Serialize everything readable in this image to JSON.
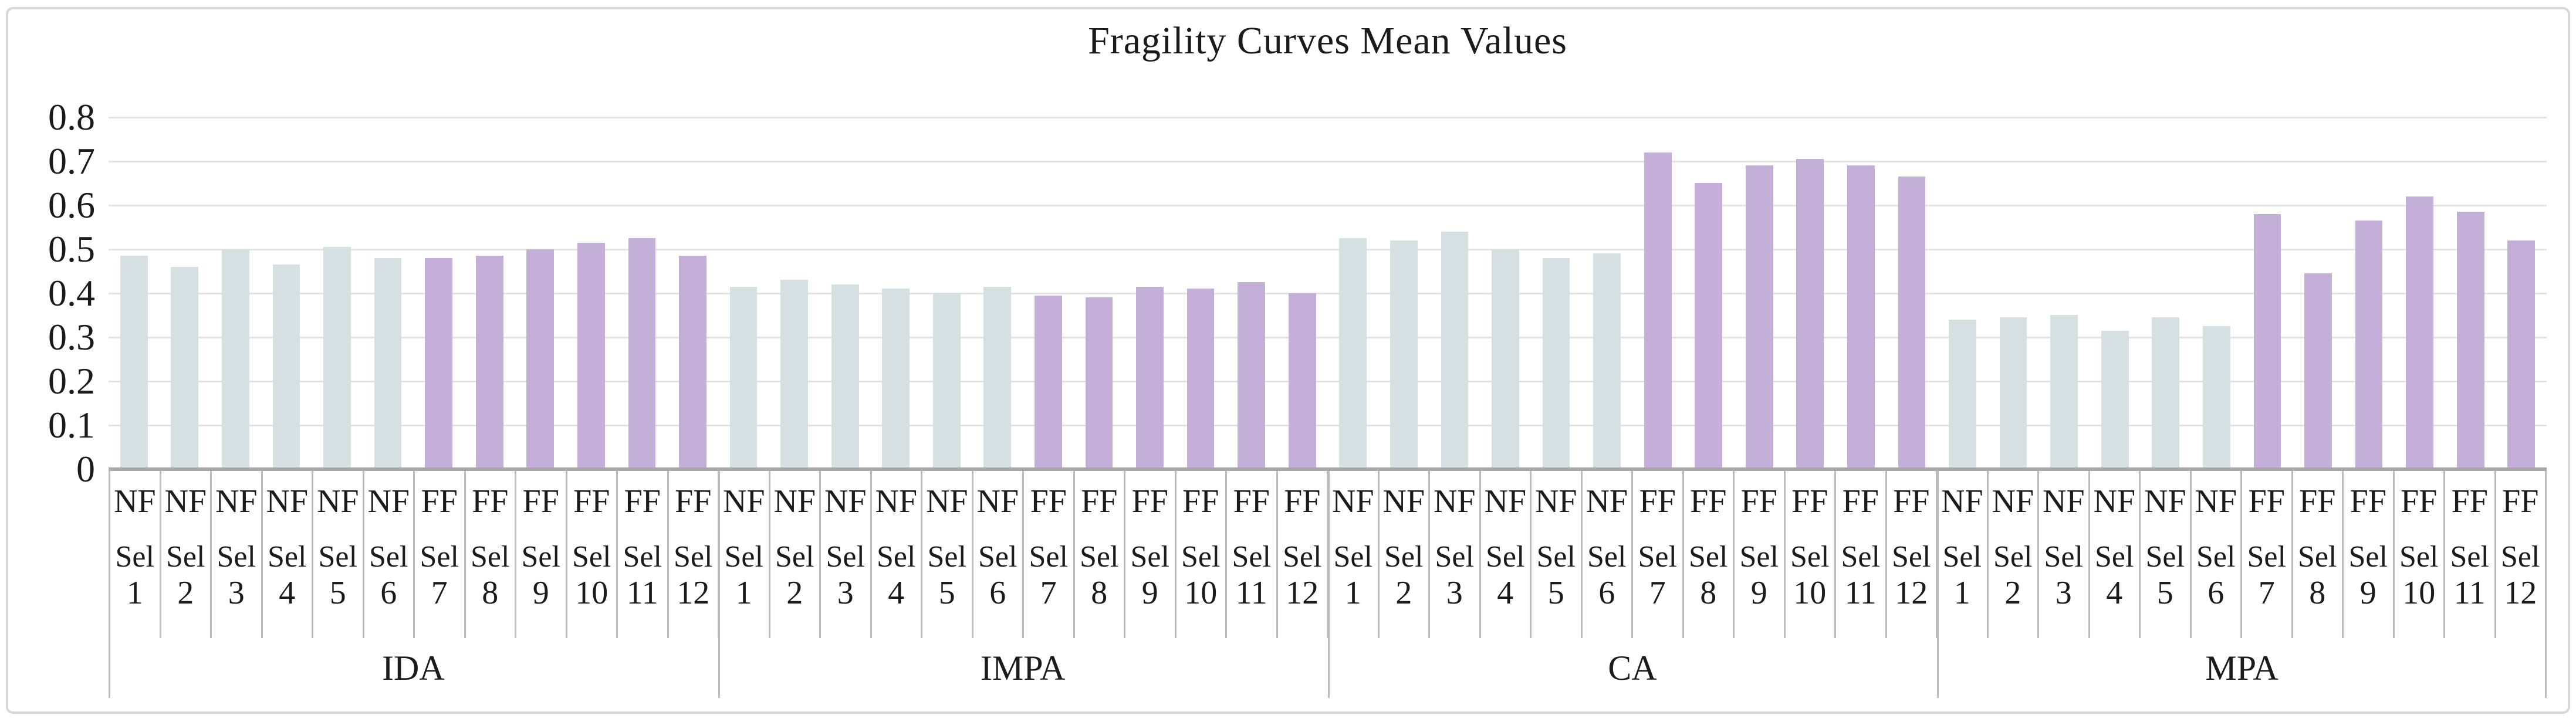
{
  "title": "Fragility Curves Mean Values",
  "chart_data": {
    "type": "bar",
    "title": "Fragility Curves Mean Values",
    "xlabel": "",
    "ylabel": "",
    "ylim": [
      0,
      0.8
    ],
    "ytick_labels": [
      "0.8",
      "0.7",
      "0.6",
      "0.5",
      "0.4",
      "0.3",
      "0.2",
      "0.1",
      "0"
    ],
    "grid": true,
    "legend_position": "none",
    "series_colors": {
      "NF": "#d6e0e2",
      "FF": "#c3afd7"
    },
    "axis_colors": {
      "gridline": "#e4e4e4",
      "axis_line": "#a8a8a8",
      "table_line": "#bcbcbc",
      "figure_border": "#d8d8d8"
    },
    "groups": [
      {
        "name": "IDA",
        "bars": [
          {
            "label1": "NF",
            "label2": "Sel",
            "label3": "1",
            "value": 0.485
          },
          {
            "label1": "NF",
            "label2": "Sel",
            "label3": "2",
            "value": 0.46
          },
          {
            "label1": "NF",
            "label2": "Sel",
            "label3": "3",
            "value": 0.5
          },
          {
            "label1": "NF",
            "label2": "Sel",
            "label3": "4",
            "value": 0.465
          },
          {
            "label1": "NF",
            "label2": "Sel",
            "label3": "5",
            "value": 0.505
          },
          {
            "label1": "NF",
            "label2": "Sel",
            "label3": "6",
            "value": 0.48
          },
          {
            "label1": "FF",
            "label2": "Sel",
            "label3": "7",
            "value": 0.48
          },
          {
            "label1": "FF",
            "label2": "Sel",
            "label3": "8",
            "value": 0.485
          },
          {
            "label1": "FF",
            "label2": "Sel",
            "label3": "9",
            "value": 0.5
          },
          {
            "label1": "FF",
            "label2": "Sel",
            "label3": "10",
            "value": 0.515
          },
          {
            "label1": "FF",
            "label2": "Sel",
            "label3": "11",
            "value": 0.525
          },
          {
            "label1": "FF",
            "label2": "Sel",
            "label3": "12",
            "value": 0.485
          }
        ]
      },
      {
        "name": "IMPA",
        "bars": [
          {
            "label1": "NF",
            "label2": "Sel",
            "label3": "1",
            "value": 0.415
          },
          {
            "label1": "NF",
            "label2": "Sel",
            "label3": "2",
            "value": 0.43
          },
          {
            "label1": "NF",
            "label2": "Sel",
            "label3": "3",
            "value": 0.42
          },
          {
            "label1": "NF",
            "label2": "Sel",
            "label3": "4",
            "value": 0.41
          },
          {
            "label1": "NF",
            "label2": "Sel",
            "label3": "5",
            "value": 0.4
          },
          {
            "label1": "NF",
            "label2": "Sel",
            "label3": "6",
            "value": 0.415
          },
          {
            "label1": "FF",
            "label2": "Sel",
            "label3": "7",
            "value": 0.395
          },
          {
            "label1": "FF",
            "label2": "Sel",
            "label3": "8",
            "value": 0.39
          },
          {
            "label1": "FF",
            "label2": "Sel",
            "label3": "9",
            "value": 0.415
          },
          {
            "label1": "FF",
            "label2": "Sel",
            "label3": "10",
            "value": 0.41
          },
          {
            "label1": "FF",
            "label2": "Sel",
            "label3": "11",
            "value": 0.425
          },
          {
            "label1": "FF",
            "label2": "Sel",
            "label3": "12",
            "value": 0.4
          }
        ]
      },
      {
        "name": "CA",
        "bars": [
          {
            "label1": "NF",
            "label2": "Sel",
            "label3": "1",
            "value": 0.525
          },
          {
            "label1": "NF",
            "label2": "Sel",
            "label3": "2",
            "value": 0.52
          },
          {
            "label1": "NF",
            "label2": "Sel",
            "label3": "3",
            "value": 0.54
          },
          {
            "label1": "NF",
            "label2": "Sel",
            "label3": "4",
            "value": 0.5
          },
          {
            "label1": "NF",
            "label2": "Sel",
            "label3": "5",
            "value": 0.48
          },
          {
            "label1": "NF",
            "label2": "Sel",
            "label3": "6",
            "value": 0.49
          },
          {
            "label1": "FF",
            "label2": "Sel",
            "label3": "7",
            "value": 0.72
          },
          {
            "label1": "FF",
            "label2": "Sel",
            "label3": "8",
            "value": 0.65
          },
          {
            "label1": "FF",
            "label2": "Sel",
            "label3": "9",
            "value": 0.69
          },
          {
            "label1": "FF",
            "label2": "Sel",
            "label3": "10",
            "value": 0.705
          },
          {
            "label1": "FF",
            "label2": "Sel",
            "label3": "11",
            "value": 0.69
          },
          {
            "label1": "FF",
            "label2": "Sel",
            "label3": "12",
            "value": 0.665
          }
        ]
      },
      {
        "name": "MPA",
        "bars": [
          {
            "label1": "NF",
            "label2": "Sel",
            "label3": "1",
            "value": 0.34
          },
          {
            "label1": "NF",
            "label2": "Sel",
            "label3": "2",
            "value": 0.345
          },
          {
            "label1": "NF",
            "label2": "Sel",
            "label3": "3",
            "value": 0.35
          },
          {
            "label1": "NF",
            "label2": "Sel",
            "label3": "4",
            "value": 0.315
          },
          {
            "label1": "NF",
            "label2": "Sel",
            "label3": "5",
            "value": 0.345
          },
          {
            "label1": "NF",
            "label2": "Sel",
            "label3": "6",
            "value": 0.325
          },
          {
            "label1": "FF",
            "label2": "Sel",
            "label3": "7",
            "value": 0.58
          },
          {
            "label1": "FF",
            "label2": "Sel",
            "label3": "8",
            "value": 0.445
          },
          {
            "label1": "FF",
            "label2": "Sel",
            "label3": "9",
            "value": 0.565
          },
          {
            "label1": "FF",
            "label2": "Sel",
            "label3": "10",
            "value": 0.62
          },
          {
            "label1": "FF",
            "label2": "Sel",
            "label3": "11",
            "value": 0.585
          },
          {
            "label1": "FF",
            "label2": "Sel",
            "label3": "12",
            "value": 0.52
          }
        ]
      }
    ]
  }
}
